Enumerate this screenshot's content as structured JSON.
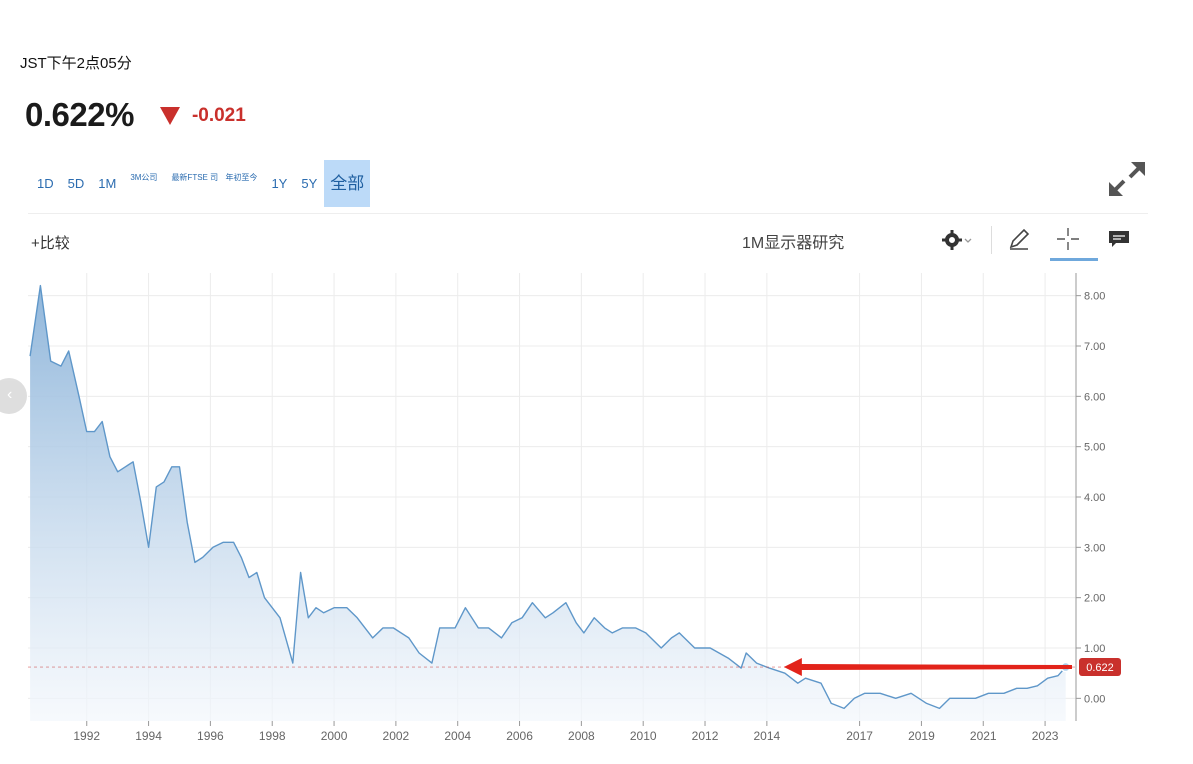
{
  "header": {
    "time": "JST下午2点05分",
    "price": "0.622%",
    "change": "-0.021"
  },
  "range_tabs": [
    {
      "label": "1D",
      "active": false
    },
    {
      "label": "5D",
      "active": false
    },
    {
      "label": "1M",
      "active": false
    },
    {
      "label": "3M公司",
      "active": false
    },
    {
      "label": "最新FTSE 司",
      "active": false
    },
    {
      "label": "年初至今",
      "active": false
    },
    {
      "label": "1Y",
      "active": false
    },
    {
      "label": "5Y",
      "active": false
    },
    {
      "label": "全部",
      "active": true
    }
  ],
  "toolbar": {
    "compare": "+比较",
    "study": "1M显示器研究",
    "icons": [
      "settings-icon",
      "pencil-icon",
      "crosshair-icon",
      "comment-icon",
      "expand-icon"
    ]
  },
  "colors": {
    "line": "#5f97c9",
    "fill_top": "#8bb3d9",
    "fill_bottom": "#f3f7fc",
    "down": "#c9302c",
    "annotation_arrow": "#e2231a",
    "active_tab_bg": "#bcdaf8"
  },
  "chart_data": {
    "type": "area",
    "y_ticks": [
      "8.00",
      "7.00",
      "6.00",
      "5.00",
      "4.00",
      "3.00",
      "2.00",
      "1.00",
      "0.00"
    ],
    "x_ticks": [
      "1992",
      "1994",
      "1996",
      "1998",
      "2000",
      "2002",
      "2004",
      "2006",
      "2008",
      "2010",
      "2012",
      "2014",
      "2017",
      "2019",
      "2021",
      "2023"
    ],
    "ylim": [
      -0.45,
      8.45
    ],
    "grid": true,
    "last_value": 0.622,
    "last_value_label": "0.622",
    "annotation": "red arrow pointing left from the last value",
    "series": [
      {
        "points": [
          [
            "1990-03",
            6.8
          ],
          [
            "1990-07",
            8.2
          ],
          [
            "1990-11",
            6.7
          ],
          [
            "1991-03",
            6.6
          ],
          [
            "1991-06",
            6.9
          ],
          [
            "1991-10",
            6.0
          ],
          [
            "1992-01",
            5.3
          ],
          [
            "1992-04",
            5.3
          ],
          [
            "1992-07",
            5.5
          ],
          [
            "1992-10",
            4.8
          ],
          [
            "1993-01",
            4.5
          ],
          [
            "1993-04",
            4.6
          ],
          [
            "1993-07",
            4.7
          ],
          [
            "1993-10",
            3.9
          ],
          [
            "1994-01",
            3.0
          ],
          [
            "1994-04",
            4.2
          ],
          [
            "1994-07",
            4.3
          ],
          [
            "1994-10",
            4.6
          ],
          [
            "1995-01",
            4.6
          ],
          [
            "1995-04",
            3.5
          ],
          [
            "1995-07",
            2.7
          ],
          [
            "1995-10",
            2.8
          ],
          [
            "1996-02",
            3.0
          ],
          [
            "1996-06",
            3.1
          ],
          [
            "1996-10",
            3.1
          ],
          [
            "1997-01",
            2.8
          ],
          [
            "1997-04",
            2.4
          ],
          [
            "1997-07",
            2.5
          ],
          [
            "1997-10",
            2.0
          ],
          [
            "1998-01",
            1.8
          ],
          [
            "1998-04",
            1.6
          ],
          [
            "1998-09",
            0.7
          ],
          [
            "1998-12",
            2.5
          ],
          [
            "1999-03",
            1.6
          ],
          [
            "1999-06",
            1.8
          ],
          [
            "1999-09",
            1.7
          ],
          [
            "2000-01",
            1.8
          ],
          [
            "2000-06",
            1.8
          ],
          [
            "2000-10",
            1.6
          ],
          [
            "2001-01",
            1.4
          ],
          [
            "2001-04",
            1.2
          ],
          [
            "2001-08",
            1.4
          ],
          [
            "2001-12",
            1.4
          ],
          [
            "2002-06",
            1.2
          ],
          [
            "2002-10",
            0.9
          ],
          [
            "2003-03",
            0.7
          ],
          [
            "2003-06",
            1.4
          ],
          [
            "2003-12",
            1.4
          ],
          [
            "2004-04",
            1.8
          ],
          [
            "2004-09",
            1.4
          ],
          [
            "2005-01",
            1.4
          ],
          [
            "2005-06",
            1.2
          ],
          [
            "2005-10",
            1.5
          ],
          [
            "2006-02",
            1.6
          ],
          [
            "2006-06",
            1.9
          ],
          [
            "2006-11",
            1.6
          ],
          [
            "2007-02",
            1.7
          ],
          [
            "2007-07",
            1.9
          ],
          [
            "2007-11",
            1.5
          ],
          [
            "2008-02",
            1.3
          ],
          [
            "2008-06",
            1.6
          ],
          [
            "2008-10",
            1.4
          ],
          [
            "2009-01",
            1.3
          ],
          [
            "2009-05",
            1.4
          ],
          [
            "2009-10",
            1.4
          ],
          [
            "2010-02",
            1.3
          ],
          [
            "2010-08",
            1.0
          ],
          [
            "2010-12",
            1.2
          ],
          [
            "2011-03",
            1.3
          ],
          [
            "2011-09",
            1.0
          ],
          [
            "2012-03",
            1.0
          ],
          [
            "2012-10",
            0.8
          ],
          [
            "2013-03",
            0.6
          ],
          [
            "2013-05",
            0.9
          ],
          [
            "2013-09",
            0.7
          ],
          [
            "2014-02",
            0.6
          ],
          [
            "2014-08",
            0.5
          ],
          [
            "2015-01",
            0.3
          ],
          [
            "2015-04",
            0.4
          ],
          [
            "2015-10",
            0.3
          ],
          [
            "2016-02",
            -0.1
          ],
          [
            "2016-07",
            -0.2
          ],
          [
            "2016-11",
            0.0
          ],
          [
            "2017-03",
            0.1
          ],
          [
            "2017-09",
            0.1
          ],
          [
            "2018-03",
            0.0
          ],
          [
            "2018-09",
            0.1
          ],
          [
            "2019-03",
            -0.1
          ],
          [
            "2019-08",
            -0.2
          ],
          [
            "2019-12",
            0.0
          ],
          [
            "2020-05",
            0.0
          ],
          [
            "2020-10",
            0.0
          ],
          [
            "2021-03",
            0.1
          ],
          [
            "2021-09",
            0.1
          ],
          [
            "2022-02",
            0.2
          ],
          [
            "2022-06",
            0.2
          ],
          [
            "2022-10",
            0.25
          ],
          [
            "2023-02",
            0.4
          ],
          [
            "2023-06",
            0.45
          ],
          [
            "2023-09",
            0.622
          ]
        ]
      }
    ]
  }
}
